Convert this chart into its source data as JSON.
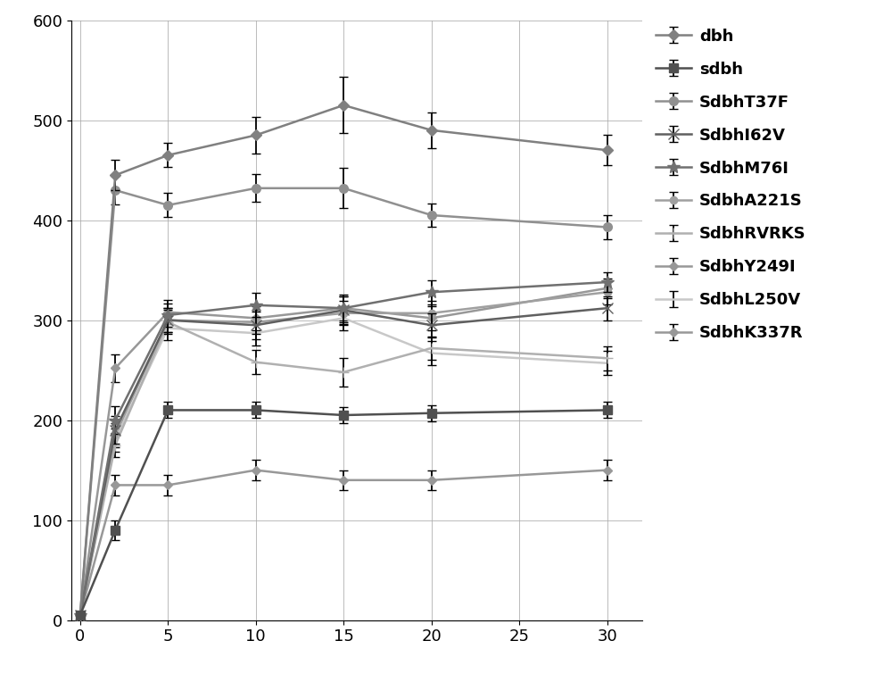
{
  "x": [
    0,
    2,
    5,
    10,
    15,
    20,
    30
  ],
  "series": {
    "dbh": {
      "y": [
        5,
        445,
        465,
        485,
        515,
        490,
        470
      ],
      "yerr": [
        0,
        15,
        12,
        18,
        28,
        18,
        15
      ],
      "color": "#808080",
      "marker": "D",
      "linewidth": 1.8,
      "markersize": 6,
      "zorder": 5
    },
    "sdbh": {
      "y": [
        5,
        90,
        210,
        210,
        205,
        207,
        210
      ],
      "yerr": [
        0,
        10,
        8,
        8,
        8,
        8,
        8
      ],
      "color": "#505050",
      "marker": "s",
      "linewidth": 1.8,
      "markersize": 7,
      "zorder": 5
    },
    "SdbhT37F": {
      "y": [
        5,
        430,
        415,
        432,
        432,
        405,
        393
      ],
      "yerr": [
        0,
        14,
        12,
        14,
        20,
        12,
        12
      ],
      "color": "#909090",
      "marker": "o",
      "linewidth": 1.8,
      "markersize": 7,
      "zorder": 4
    },
    "SdbhI62V": {
      "y": [
        5,
        190,
        300,
        295,
        310,
        295,
        312
      ],
      "yerr": [
        0,
        14,
        12,
        14,
        14,
        12,
        12
      ],
      "color": "#606060",
      "marker": "x",
      "linewidth": 1.8,
      "markersize": 8,
      "zorder": 4
    },
    "SdbhM76I": {
      "y": [
        5,
        200,
        305,
        315,
        312,
        328,
        338
      ],
      "yerr": [
        0,
        14,
        12,
        12,
        14,
        12,
        10
      ],
      "color": "#707070",
      "marker": "*",
      "linewidth": 1.8,
      "markersize": 10,
      "zorder": 4
    },
    "SdbhA221S": {
      "y": [
        5,
        185,
        300,
        298,
        307,
        307,
        328
      ],
      "yerr": [
        0,
        12,
        12,
        12,
        12,
        12,
        12
      ],
      "color": "#a0a0a0",
      "marker": "o",
      "linewidth": 1.8,
      "markersize": 6,
      "zorder": 3
    },
    "SdbhRVRKS": {
      "y": [
        5,
        175,
        298,
        258,
        248,
        272,
        262
      ],
      "yerr": [
        0,
        12,
        12,
        12,
        14,
        12,
        12
      ],
      "color": "#b0b0b0",
      "marker": "+",
      "linewidth": 1.8,
      "markersize": 9,
      "zorder": 3
    },
    "SdbhY249I": {
      "y": [
        5,
        135,
        135,
        150,
        140,
        140,
        150
      ],
      "yerr": [
        0,
        10,
        10,
        10,
        10,
        10,
        10
      ],
      "color": "#989898",
      "marker": "D",
      "linewidth": 1.8,
      "markersize": 5,
      "zorder": 3
    },
    "SdbhL250V": {
      "y": [
        5,
        180,
        292,
        287,
        302,
        267,
        257
      ],
      "yerr": [
        0,
        12,
        12,
        12,
        12,
        12,
        12
      ],
      "color": "#c8c8c8",
      "marker": "None",
      "linewidth": 1.8,
      "markersize": 5,
      "zorder": 2
    },
    "SdbhK337R": {
      "y": [
        5,
        252,
        308,
        302,
        312,
        302,
        332
      ],
      "yerr": [
        0,
        14,
        12,
        12,
        12,
        12,
        10
      ],
      "color": "#989898",
      "marker": "D",
      "linewidth": 1.8,
      "markersize": 5,
      "zorder": 2
    }
  },
  "xlim": [
    -0.5,
    32
  ],
  "ylim": [
    0,
    600
  ],
  "xticks": [
    0,
    5,
    10,
    15,
    20,
    25,
    30
  ],
  "yticks": [
    0,
    100,
    200,
    300,
    400,
    500,
    600
  ],
  "grid": true,
  "figsize": [
    10.0,
    7.55
  ],
  "dpi": 100,
  "background_color": "#ffffff",
  "legend_fontsize": 13,
  "tick_fontsize": 13,
  "legend_labels": [
    "dbh",
    "sdbh",
    "SdbhT37F",
    "SdbhI62V",
    "SdbhM76I",
    "SdbhA221S",
    "SdbhRVRKS",
    "SdbhY249I",
    "SdbhL250V",
    "SdbhK337R"
  ]
}
